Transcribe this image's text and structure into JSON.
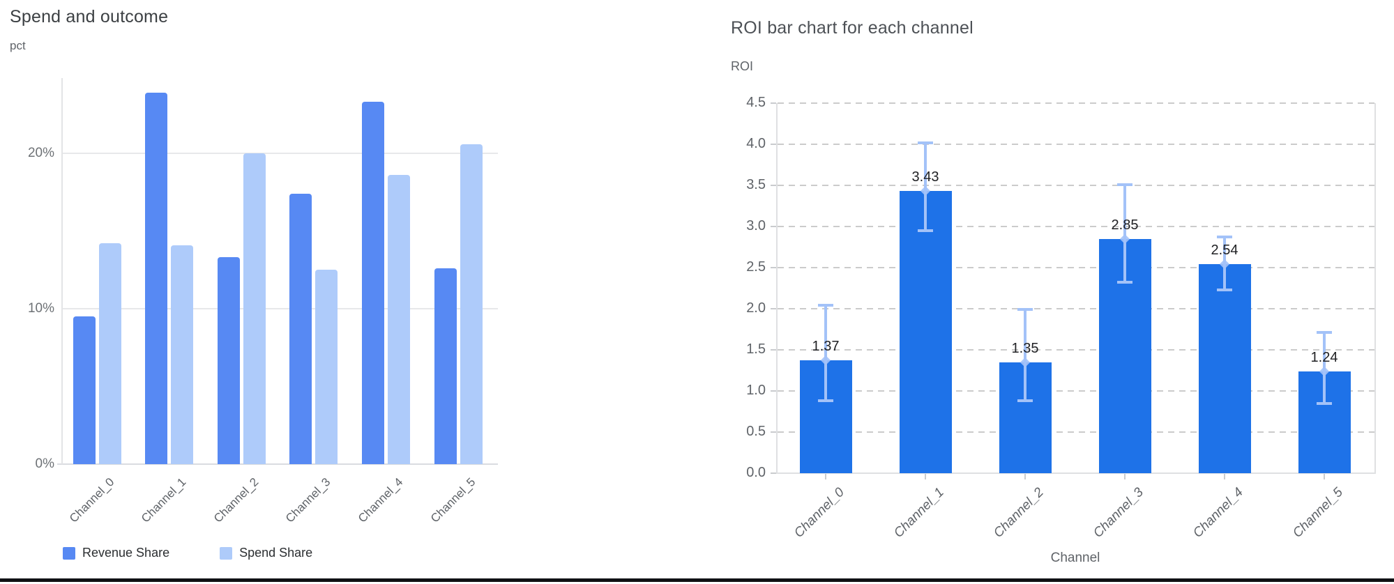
{
  "page": {
    "background": "#ffffff"
  },
  "left_chart": {
    "title": "Spend and outcome",
    "y_axis_label": "pct",
    "legend": [
      {
        "label": "Revenue Share",
        "color": "#5789f3"
      },
      {
        "label": "Spend Share",
        "color": "#aecbfa"
      }
    ]
  },
  "right_chart": {
    "title": "ROI bar chart for each channel",
    "y_axis_label": "ROI",
    "x_axis_label": "Channel"
  },
  "chart_data": [
    {
      "type": "bar",
      "title": "Spend and outcome",
      "ylabel": "pct",
      "xlabel": "",
      "categories": [
        "Channel_0",
        "Channel_1",
        "Channel_2",
        "Channel_3",
        "Channel_4",
        "Channel_5"
      ],
      "series": [
        {
          "name": "Revenue Share",
          "color": "#5789f3",
          "values": [
            9.5,
            23.9,
            13.3,
            17.4,
            23.3,
            12.6
          ]
        },
        {
          "name": "Spend Share",
          "color": "#aecbfa",
          "values": [
            14.2,
            14.1,
            20.0,
            12.5,
            18.6,
            20.6
          ]
        }
      ],
      "value_unit": "%",
      "ylim": [
        0,
        25
      ],
      "ytick_values": [
        0,
        10,
        20
      ],
      "ytick_labels": [
        "0%",
        "10%",
        "20%"
      ],
      "grid": true,
      "legend_position": "bottom"
    },
    {
      "type": "bar",
      "title": "ROI bar chart for each channel",
      "ylabel": "ROI",
      "xlabel": "Channel",
      "categories": [
        "Channel_0",
        "Channel_1",
        "Channel_2",
        "Channel_3",
        "Channel_4",
        "Channel_5"
      ],
      "values": [
        1.37,
        3.43,
        1.35,
        2.85,
        2.54,
        1.24
      ],
      "value_labels": [
        "1.37",
        "3.43",
        "1.35",
        "2.85",
        "2.54",
        "1.24"
      ],
      "error_low": [
        0.88,
        2.95,
        0.88,
        2.32,
        2.23,
        0.85
      ],
      "error_high": [
        2.04,
        4.02,
        1.99,
        3.51,
        2.87,
        1.71
      ],
      "bar_color": "#1e72e8",
      "error_color": "#a3c2f8",
      "ylim": [
        0,
        4.5
      ],
      "ytick_values": [
        4.5,
        4.0,
        3.5,
        3.0,
        2.5,
        2.0,
        1.5,
        1.0,
        0.5,
        0.0
      ],
      "ytick_labels": [
        "4.5",
        "4.0",
        "3.5",
        "3.0",
        "2.5",
        "2.0",
        "1.5",
        "1.0",
        "0.5",
        "0.0"
      ],
      "grid": "dashed",
      "legend_position": "none"
    }
  ],
  "colors": {
    "left_bar_dark": "#5789f3",
    "left_bar_light": "#aecbfa",
    "right_bar": "#1e72e8",
    "error_bar": "#a3c2f8",
    "gridline": "#e7e8ea",
    "dashed_gridline": "#cbcbcb",
    "axis_line": "#dadce0",
    "bottom_border": "#101114"
  }
}
